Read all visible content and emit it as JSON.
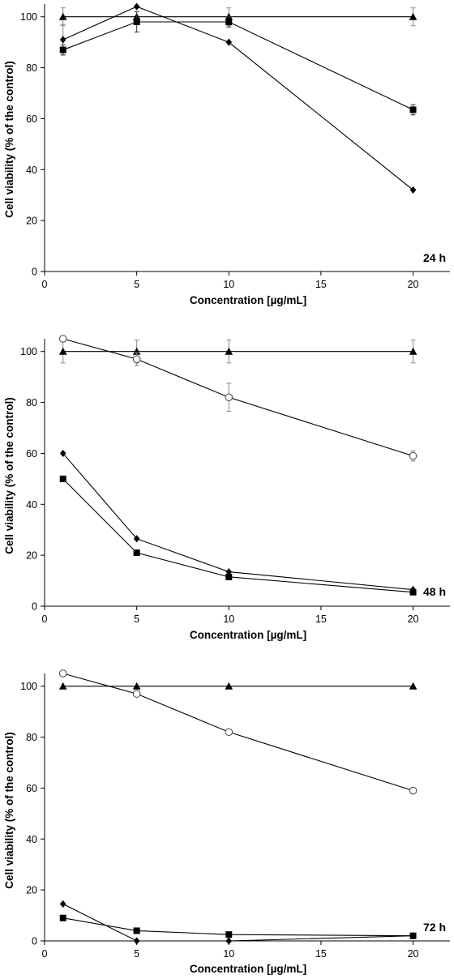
{
  "chart_data": [
    {
      "type": "line",
      "panel_label": "24 h",
      "xlabel": "Concentration [µg/mL]",
      "ylabel": "Cell viability (% of the control)",
      "xlim": [
        0,
        22
      ],
      "ylim": [
        0,
        105
      ],
      "x_ticks": [
        0,
        5,
        10,
        15,
        20
      ],
      "y_ticks": [
        0,
        20,
        40,
        60,
        80,
        100
      ],
      "grid": false,
      "series": [
        {
          "marker": "triangle",
          "color": "#000000",
          "x": [
            1,
            5,
            10,
            20
          ],
          "y": [
            100,
            100,
            100,
            100
          ],
          "err": [
            3.5,
            0,
            3.5,
            3.5
          ],
          "err_color": "#888888"
        },
        {
          "marker": "diamond",
          "color": "#000000",
          "x": [
            1,
            5,
            10,
            20
          ],
          "y": [
            91,
            104,
            90,
            32
          ],
          "err": [
            6,
            0,
            0,
            0
          ],
          "err_color": "#888888"
        },
        {
          "marker": "square",
          "color": "#000000",
          "x": [
            1,
            5,
            10,
            20
          ],
          "y": [
            87,
            98,
            98,
            63.5
          ],
          "err": [
            2,
            4,
            2,
            2
          ],
          "err_color": "#333333"
        }
      ]
    },
    {
      "type": "line",
      "panel_label": "48 h",
      "xlabel": "Concentration [µg/mL]",
      "ylabel": "Cell viability (% of the control)",
      "xlim": [
        0,
        22
      ],
      "ylim": [
        0,
        105
      ],
      "x_ticks": [
        0,
        5,
        10,
        15,
        20
      ],
      "y_ticks": [
        0,
        20,
        40,
        60,
        80,
        100
      ],
      "grid": false,
      "series": [
        {
          "marker": "triangle",
          "color": "#000000",
          "x": [
            1,
            5,
            10,
            20
          ],
          "y": [
            100,
            100,
            100,
            100
          ],
          "err": [
            4.5,
            4.5,
            4.5,
            4.5
          ],
          "err_color": "#888888"
        },
        {
          "marker": "circle-open",
          "color": "#000000",
          "x": [
            1,
            5,
            10,
            20
          ],
          "y": [
            105,
            97,
            82,
            59
          ],
          "err": [
            0,
            2.5,
            5.5,
            2
          ],
          "err_color": "#888888"
        },
        {
          "marker": "diamond",
          "color": "#000000",
          "x": [
            1,
            5,
            10,
            20
          ],
          "y": [
            60,
            26.5,
            13.5,
            6.5
          ],
          "err": [
            0,
            0,
            0,
            0
          ],
          "err_color": "#888888"
        },
        {
          "marker": "square",
          "color": "#000000",
          "x": [
            1,
            5,
            10,
            20
          ],
          "y": [
            50,
            21,
            11.5,
            5.5
          ],
          "err": [
            0,
            0,
            0,
            0
          ],
          "err_color": "#888888"
        }
      ]
    },
    {
      "type": "line",
      "panel_label": "72 h",
      "xlabel": "Concentration [µg/mL]",
      "ylabel": "Cell viability (% of the control)",
      "xlim": [
        0,
        22
      ],
      "ylim": [
        0,
        105
      ],
      "x_ticks": [
        0,
        5,
        10,
        15,
        20
      ],
      "y_ticks": [
        0,
        20,
        40,
        60,
        80,
        100
      ],
      "grid": false,
      "series": [
        {
          "marker": "triangle",
          "color": "#000000",
          "x": [
            1,
            5,
            10,
            20
          ],
          "y": [
            100,
            100,
            100,
            100
          ],
          "err": [
            0,
            0,
            0,
            0
          ],
          "err_color": "#888888"
        },
        {
          "marker": "circle-open",
          "color": "#000000",
          "x": [
            1,
            5,
            10,
            20
          ],
          "y": [
            105,
            97,
            82,
            59
          ],
          "err": [
            0,
            0,
            0,
            0
          ],
          "err_color": "#888888"
        },
        {
          "marker": "diamond",
          "color": "#000000",
          "x": [
            1,
            5,
            10,
            20
          ],
          "y": [
            14.5,
            0,
            0,
            2
          ],
          "err": [
            0,
            0,
            0,
            0
          ],
          "err_color": "#888888"
        },
        {
          "marker": "square",
          "color": "#000000",
          "x": [
            1,
            5,
            10,
            20
          ],
          "y": [
            9,
            4,
            2.5,
            2
          ],
          "err": [
            0,
            0,
            0,
            0
          ],
          "err_color": "#888888"
        }
      ]
    }
  ]
}
